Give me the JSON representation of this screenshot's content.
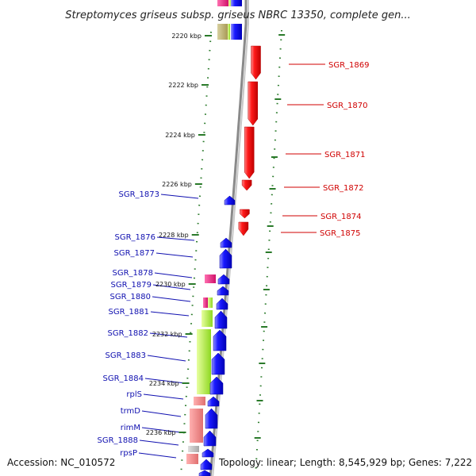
{
  "title": "Streptomyces griseus subsp. griseus NBRC 13350, complete gen...",
  "footer": {
    "accession": "Accession: NC_010572",
    "summary": "Topology: linear; Length: 8,545,929 bp; Genes: 7,222"
  },
  "colors": {
    "forward_label": "#1010b0",
    "reverse_label": "#d00000",
    "forward_gene": "#0a0ae6",
    "reverse_gene": "#f20000",
    "axis_tick": "#2a7a2a",
    "backbone": "#8a8a8a"
  },
  "axis": {
    "unit": "kbp",
    "ticks": [
      {
        "label": "2220 kbp",
        "value": 2220
      },
      {
        "label": "2222 kbp",
        "value": 2222
      },
      {
        "label": "2224 kbp",
        "value": 2224
      },
      {
        "label": "2226 kbp",
        "value": 2226
      },
      {
        "label": "2228 kbp",
        "value": 2228
      },
      {
        "label": "2230 kbp",
        "value": 2230
      },
      {
        "label": "2232 kbp",
        "value": 2232
      },
      {
        "label": "2234 kbp",
        "value": 2234
      },
      {
        "label": "2236 kbp",
        "value": 2236
      }
    ]
  },
  "genes": {
    "reverse_strand": [
      {
        "label": "SGR_1869"
      },
      {
        "label": "SGR_1870"
      },
      {
        "label": "SGR_1871"
      },
      {
        "label": "SGR_1872"
      },
      {
        "label": "SGR_1874"
      },
      {
        "label": "SGR_1875"
      }
    ],
    "forward_strand": [
      {
        "label": "SGR_1873"
      },
      {
        "label": "SGR_1876"
      },
      {
        "label": "SGR_1877"
      },
      {
        "label": "SGR_1878"
      },
      {
        "label": "SGR_1879"
      },
      {
        "label": "SGR_1880"
      },
      {
        "label": "SGR_1881"
      },
      {
        "label": "SGR_1882"
      },
      {
        "label": "SGR_1883"
      },
      {
        "label": "SGR_1884"
      },
      {
        "label": "rplS"
      },
      {
        "label": "trmD"
      },
      {
        "label": "rimM"
      },
      {
        "label": "SGR_1888"
      },
      {
        "label": "rpsP"
      }
    ]
  }
}
